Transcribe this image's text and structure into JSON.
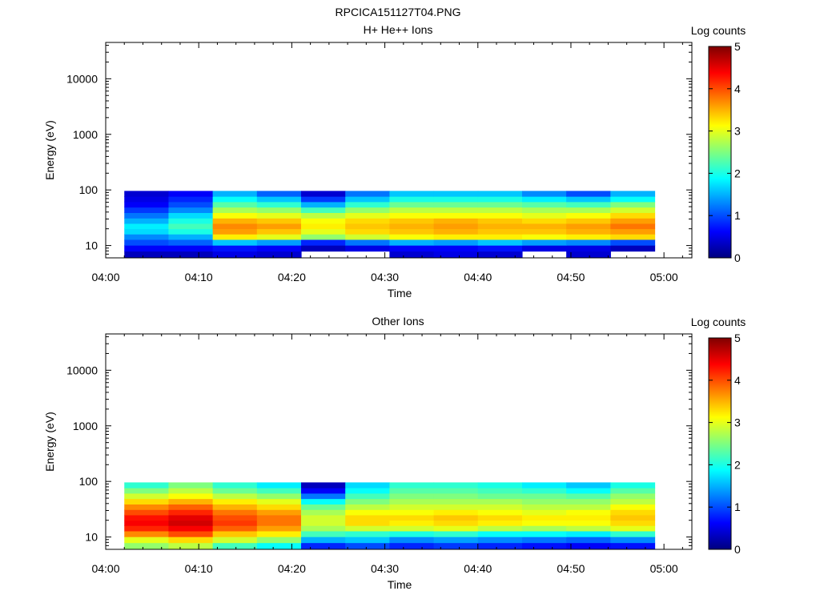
{
  "figure_title": "RPCICA151127T04.PNG",
  "colormap": [
    "#00007f",
    "#0000ff",
    "#007fff",
    "#00ffff",
    "#7fff7f",
    "#ffff00",
    "#ff7f00",
    "#ff0000",
    "#7f0000"
  ],
  "chart_data": [
    {
      "type": "heatmap",
      "title": "H+ He++ Ions",
      "xlabel": "Time",
      "ylabel": "Energy (eV)",
      "colorbar_label": "Log counts",
      "colorbar_ticks": [
        "0",
        "1",
        "2",
        "3",
        "4",
        "5"
      ],
      "color_range": [
        0,
        5
      ],
      "x_ticks": [
        "04:00",
        "04:10",
        "04:20",
        "04:30",
        "04:40",
        "04:50",
        "05:00"
      ],
      "xlim": [
        "04:00",
        "05:03"
      ],
      "y_scale": "log",
      "y_ticks": [
        "10",
        "100",
        "1000",
        "10000"
      ],
      "ylim": [
        6,
        45000
      ],
      "data_time_range": [
        "04:02",
        "04:59"
      ],
      "energy_bins": [
        7,
        9,
        11.5,
        14.5,
        18,
        22.5,
        28,
        35,
        44,
        55,
        69,
        86
      ],
      "time_bins": [
        "04:02",
        "04:07",
        "04:12",
        "04:17",
        "04:22",
        "04:27",
        "04:32",
        "04:37",
        "04:42",
        "04:47",
        "04:52",
        "04:57"
      ],
      "values": [
        [
          0.3,
          0.3,
          0.5,
          0.4,
          null,
          null,
          0.4,
          0.5,
          0.4,
          null,
          0.4,
          null
        ],
        [
          0.6,
          0.6,
          0.7,
          0.6,
          0.3,
          0.5,
          0.6,
          0.6,
          0.7,
          0.5,
          0.5,
          0.3
        ],
        [
          1.0,
          1.1,
          1.6,
          1.4,
          0.8,
          1.2,
          1.5,
          1.4,
          1.6,
          1.4,
          1.3,
          1.0
        ],
        [
          1.3,
          1.5,
          3.2,
          3.0,
          2.6,
          2.9,
          3.1,
          3.2,
          3.2,
          3.1,
          3.2,
          3.3
        ],
        [
          1.7,
          2.0,
          3.6,
          3.4,
          3.0,
          3.3,
          3.4,
          3.5,
          3.4,
          3.4,
          3.5,
          3.6
        ],
        [
          1.8,
          2.2,
          3.7,
          3.6,
          3.2,
          3.4,
          3.5,
          3.6,
          3.5,
          3.5,
          3.6,
          3.8
        ],
        [
          1.5,
          2.0,
          3.5,
          3.4,
          3.1,
          3.3,
          3.4,
          3.5,
          3.4,
          3.3,
          3.4,
          3.6
        ],
        [
          1.2,
          1.7,
          3.1,
          3.0,
          2.8,
          3.0,
          3.1,
          3.1,
          3.1,
          3.0,
          3.1,
          3.3
        ],
        [
          0.9,
          1.3,
          2.7,
          2.6,
          2.2,
          2.6,
          2.8,
          2.8,
          2.8,
          2.7,
          2.7,
          2.9
        ],
        [
          0.6,
          1.0,
          2.3,
          2.1,
          1.5,
          2.1,
          2.4,
          2.4,
          2.4,
          2.3,
          2.2,
          2.5
        ],
        [
          0.5,
          0.8,
          1.9,
          1.6,
          0.9,
          1.6,
          2.0,
          2.0,
          2.0,
          1.8,
          1.6,
          1.9
        ],
        [
          0.4,
          0.6,
          1.5,
          1.1,
          0.4,
          1.2,
          1.6,
          1.6,
          1.6,
          1.3,
          1.0,
          1.5
        ]
      ]
    },
    {
      "type": "heatmap",
      "title": "Other Ions",
      "xlabel": "Time",
      "ylabel": "Energy (eV)",
      "colorbar_label": "Log counts",
      "colorbar_ticks": [
        "0",
        "1",
        "2",
        "3",
        "4",
        "5"
      ],
      "color_range": [
        0,
        5
      ],
      "x_ticks": [
        "04:00",
        "04:10",
        "04:20",
        "04:30",
        "04:40",
        "04:50",
        "05:00"
      ],
      "xlim": [
        "04:00",
        "05:03"
      ],
      "y_scale": "log",
      "y_ticks": [
        "10",
        "100",
        "1000",
        "10000"
      ],
      "ylim": [
        6,
        45000
      ],
      "data_time_range": [
        "04:02",
        "04:59"
      ],
      "energy_bins": [
        7,
        9,
        11.5,
        14.5,
        18,
        22.5,
        28,
        35,
        44,
        55,
        69,
        86
      ],
      "time_bins": [
        "04:02",
        "04:07",
        "04:12",
        "04:17",
        "04:22",
        "04:27",
        "04:32",
        "04:37",
        "04:42",
        "04:47",
        "04:52",
        "04:57"
      ],
      "values": [
        [
          2.6,
          2.8,
          2.2,
          1.9,
          0.8,
          1.0,
          0.8,
          0.9,
          0.8,
          0.7,
          0.6,
          0.7
        ],
        [
          3.0,
          3.3,
          2.9,
          2.6,
          1.5,
          1.6,
          1.3,
          1.4,
          1.3,
          1.2,
          1.1,
          1.3
        ],
        [
          3.7,
          4.0,
          3.4,
          3.2,
          2.2,
          2.1,
          2.0,
          2.1,
          1.9,
          1.9,
          1.8,
          2.1
        ],
        [
          4.2,
          4.4,
          3.9,
          3.6,
          2.7,
          2.9,
          2.9,
          3.0,
          2.8,
          2.7,
          2.8,
          3.0
        ],
        [
          4.4,
          4.6,
          4.1,
          3.8,
          2.9,
          3.3,
          3.2,
          3.3,
          3.2,
          3.1,
          3.1,
          3.3
        ],
        [
          4.3,
          4.5,
          4.0,
          3.8,
          2.9,
          3.3,
          3.3,
          3.4,
          3.3,
          3.2,
          3.2,
          3.4
        ],
        [
          4.0,
          4.2,
          3.8,
          3.6,
          2.7,
          3.1,
          3.1,
          3.2,
          3.1,
          3.0,
          3.1,
          3.3
        ],
        [
          3.7,
          3.9,
          3.5,
          3.3,
          2.4,
          2.8,
          2.9,
          2.9,
          2.9,
          2.8,
          2.8,
          3.1
        ],
        [
          3.3,
          3.5,
          3.2,
          3.0,
          1.9,
          2.5,
          2.7,
          2.7,
          2.7,
          2.6,
          2.6,
          2.8
        ],
        [
          2.9,
          3.1,
          2.8,
          2.6,
          1.2,
          2.2,
          2.5,
          2.5,
          2.4,
          2.4,
          2.3,
          2.6
        ],
        [
          2.5,
          2.8,
          2.4,
          2.2,
          0.6,
          1.9,
          2.3,
          2.3,
          2.2,
          2.1,
          1.9,
          2.3
        ],
        [
          2.1,
          2.5,
          2.1,
          1.8,
          0.3,
          1.7,
          2.1,
          2.1,
          2.0,
          1.8,
          1.6,
          2.0
        ]
      ]
    }
  ]
}
